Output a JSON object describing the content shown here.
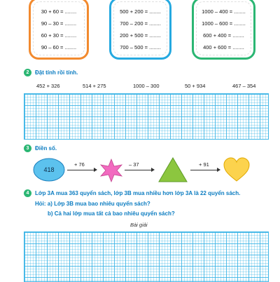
{
  "section1": {
    "box1": [
      "30 + 60 = ........",
      "90 – 30 = ........",
      "60 + 30 = ........",
      "90 – 60 = ........"
    ],
    "box2": [
      "500 + 200 = ........",
      "700 – 200 = ........",
      "200 + 500 = ........",
      "700 – 500 = ........"
    ],
    "box3": [
      "1000 – 400 = ........",
      "1000 – 600 = ........",
      "600 + 400 = ........",
      "400 + 600 = ........"
    ],
    "colors": {
      "box1": "#f28a2e",
      "box2": "#25a9e0",
      "box3": "#2bb673"
    }
  },
  "section2": {
    "number": "2",
    "title": "Đặt tính rồi tính.",
    "expressions": [
      "452 + 326",
      "514 + 275",
      "1000 – 300",
      "50 + 934",
      "467 – 354"
    ]
  },
  "section3": {
    "number": "3",
    "title": "Điền số.",
    "start_value": "418",
    "operations": [
      "+ 76",
      "– 37",
      "+ 91"
    ],
    "shapes": [
      "ellipse-icon",
      "star-icon",
      "triangle-icon",
      "heart-icon"
    ]
  },
  "section4": {
    "number": "4",
    "problem": "Lớp 3A mua 363 quyển sách, lớp 3B mua nhiều hơn lớp 3A là 22 quyển sách.",
    "question_a": "Hỏi: a) Lớp 3B mua bao nhiêu quyển sách?",
    "question_b": "b) Cả hai lớp mua tất cả bao nhiêu quyển sách?",
    "solution_label": "Bài giải"
  }
}
